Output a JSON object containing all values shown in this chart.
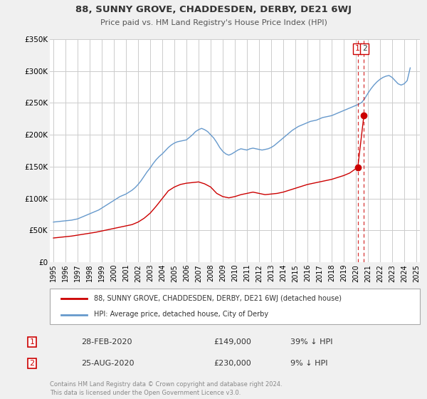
{
  "title": "88, SUNNY GROVE, CHADDESDEN, DERBY, DE21 6WJ",
  "subtitle": "Price paid vs. HM Land Registry's House Price Index (HPI)",
  "ylim": [
    0,
    350000
  ],
  "xlim_left": 1994.7,
  "xlim_right": 2025.3,
  "yticks": [
    0,
    50000,
    100000,
    150000,
    200000,
    250000,
    300000,
    350000
  ],
  "ytick_labels": [
    "£0",
    "£50K",
    "£100K",
    "£150K",
    "£200K",
    "£250K",
    "£300K",
    "£350K"
  ],
  "xticks": [
    1995,
    1996,
    1997,
    1998,
    1999,
    2000,
    2001,
    2002,
    2003,
    2004,
    2005,
    2006,
    2007,
    2008,
    2009,
    2010,
    2011,
    2012,
    2013,
    2014,
    2015,
    2016,
    2017,
    2018,
    2019,
    2020,
    2021,
    2022,
    2023,
    2024,
    2025
  ],
  "bg_color": "#f0f0f0",
  "plot_bg_color": "#ffffff",
  "grid_color": "#cccccc",
  "red_color": "#cc0000",
  "blue_color": "#6699cc",
  "vline1_x": 2020.167,
  "vline2_x": 2020.667,
  "sale1_x": 2020.167,
  "sale1_y": 149000,
  "sale2_x": 2020.667,
  "sale2_y": 230000,
  "legend1_label": "88, SUNNY GROVE, CHADDESDEN, DERBY, DE21 6WJ (detached house)",
  "legend2_label": "HPI: Average price, detached house, City of Derby",
  "table_row1": [
    "1",
    "28-FEB-2020",
    "£149,000",
    "39% ↓ HPI"
  ],
  "table_row2": [
    "2",
    "25-AUG-2020",
    "£230,000",
    "9% ↓ HPI"
  ],
  "footer": "Contains HM Land Registry data © Crown copyright and database right 2024.\nThis data is licensed under the Open Government Licence v3.0.",
  "hpi_x": [
    1995.0,
    1995.25,
    1995.5,
    1995.75,
    1996.0,
    1996.25,
    1996.5,
    1996.75,
    1997.0,
    1997.25,
    1997.5,
    1997.75,
    1998.0,
    1998.25,
    1998.5,
    1998.75,
    1999.0,
    1999.25,
    1999.5,
    1999.75,
    2000.0,
    2000.25,
    2000.5,
    2000.75,
    2001.0,
    2001.25,
    2001.5,
    2001.75,
    2002.0,
    2002.25,
    2002.5,
    2002.75,
    2003.0,
    2003.25,
    2003.5,
    2003.75,
    2004.0,
    2004.25,
    2004.5,
    2004.75,
    2005.0,
    2005.25,
    2005.5,
    2005.75,
    2006.0,
    2006.25,
    2006.5,
    2006.75,
    2007.0,
    2007.25,
    2007.5,
    2007.75,
    2008.0,
    2008.25,
    2008.5,
    2008.75,
    2009.0,
    2009.25,
    2009.5,
    2009.75,
    2010.0,
    2010.25,
    2010.5,
    2010.75,
    2011.0,
    2011.25,
    2011.5,
    2011.75,
    2012.0,
    2012.25,
    2012.5,
    2012.75,
    2013.0,
    2013.25,
    2013.5,
    2013.75,
    2014.0,
    2014.25,
    2014.5,
    2014.75,
    2015.0,
    2015.25,
    2015.5,
    2015.75,
    2016.0,
    2016.25,
    2016.5,
    2016.75,
    2017.0,
    2017.25,
    2017.5,
    2017.75,
    2018.0,
    2018.25,
    2018.5,
    2018.75,
    2019.0,
    2019.25,
    2019.5,
    2019.75,
    2020.0,
    2020.25,
    2020.5,
    2020.75,
    2021.0,
    2021.25,
    2021.5,
    2021.75,
    2022.0,
    2022.25,
    2022.5,
    2022.75,
    2023.0,
    2023.25,
    2023.5,
    2023.75,
    2024.0,
    2024.25,
    2024.5
  ],
  "hpi_y": [
    63000,
    63500,
    64000,
    64500,
    65000,
    65500,
    66000,
    67000,
    68000,
    70000,
    72000,
    74000,
    76000,
    78000,
    80000,
    82000,
    85000,
    88000,
    91000,
    94000,
    97000,
    100000,
    103000,
    105000,
    107000,
    110000,
    113000,
    117000,
    122000,
    128000,
    135000,
    142000,
    148000,
    155000,
    161000,
    166000,
    170000,
    175000,
    180000,
    184000,
    187000,
    189000,
    190000,
    191000,
    192000,
    196000,
    200000,
    205000,
    208000,
    210000,
    208000,
    205000,
    200000,
    195000,
    188000,
    180000,
    174000,
    170000,
    168000,
    170000,
    173000,
    176000,
    178000,
    177000,
    176000,
    178000,
    179000,
    178000,
    177000,
    176000,
    177000,
    178000,
    180000,
    183000,
    187000,
    191000,
    195000,
    199000,
    203000,
    207000,
    210000,
    213000,
    215000,
    217000,
    219000,
    221000,
    222000,
    223000,
    225000,
    227000,
    228000,
    229000,
    230000,
    232000,
    234000,
    236000,
    238000,
    240000,
    242000,
    244000,
    246000,
    248000,
    251000,
    257000,
    265000,
    272000,
    278000,
    283000,
    287000,
    290000,
    292000,
    293000,
    290000,
    285000,
    280000,
    278000,
    280000,
    285000,
    305000
  ],
  "red_x": [
    1995.0,
    1995.5,
    1996.0,
    1996.5,
    1997.0,
    1997.5,
    1998.0,
    1998.5,
    1999.0,
    1999.5,
    2000.0,
    2000.5,
    2001.0,
    2001.5,
    2002.0,
    2002.5,
    2003.0,
    2003.5,
    2004.0,
    2004.5,
    2005.0,
    2005.5,
    2006.0,
    2006.5,
    2007.0,
    2007.5,
    2008.0,
    2008.5,
    2009.0,
    2009.5,
    2010.0,
    2010.5,
    2011.0,
    2011.5,
    2012.0,
    2012.5,
    2013.0,
    2013.5,
    2014.0,
    2014.5,
    2015.0,
    2015.5,
    2016.0,
    2016.5,
    2017.0,
    2017.5,
    2018.0,
    2018.5,
    2019.0,
    2019.5,
    2020.167,
    2020.667
  ],
  "red_y": [
    38000,
    39000,
    40000,
    41000,
    42500,
    44000,
    45500,
    47000,
    49000,
    51000,
    53000,
    55000,
    57000,
    59000,
    63000,
    69000,
    77000,
    88000,
    100000,
    112000,
    118000,
    122000,
    124000,
    125000,
    126000,
    123000,
    118000,
    108000,
    103000,
    101000,
    103000,
    106000,
    108000,
    110000,
    108000,
    106000,
    107000,
    108000,
    110000,
    113000,
    116000,
    119000,
    122000,
    124000,
    126000,
    128000,
    130000,
    133000,
    136000,
    140000,
    149000,
    230000
  ]
}
